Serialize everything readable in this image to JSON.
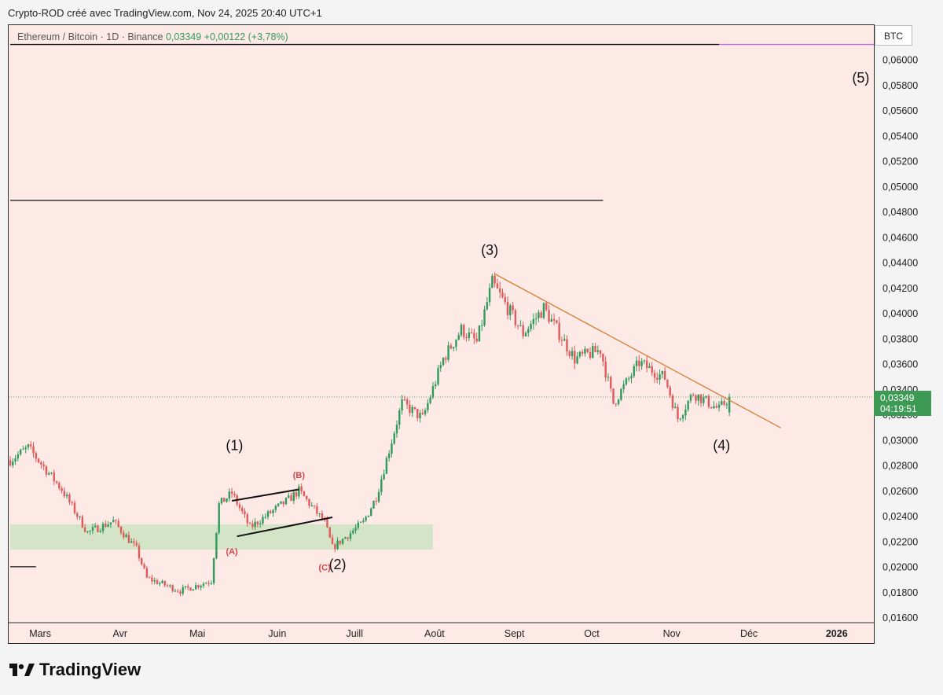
{
  "header": {
    "text": "Crypto-ROD créé avec TradingView.com, Nov 24, 2025 20:40 UTC+1"
  },
  "legend": {
    "symbol": "Ethereum / Bitcoin · 1D · Binance",
    "price": "0,03349",
    "change": "+0,00122 (+3,78%)"
  },
  "currency": "BTC",
  "last_price": {
    "price": "0,03349",
    "countdown": "04:19:51"
  },
  "brand": "TradingView",
  "colors": {
    "up": "#2f9a5b",
    "down": "#e05a5a",
    "background": "#fdeae7",
    "zone": "#cfe3c3",
    "trendline": "#d9803a"
  },
  "chart_data": {
    "type": "candlestick",
    "y_ticks": [
      "0,06000",
      "0,05800",
      "0,05600",
      "0,05400",
      "0,05200",
      "0,05000",
      "0,04800",
      "0,04600",
      "0,04400",
      "0,04200",
      "0,04000",
      "0,03800",
      "0,03600",
      "0,03400",
      "0,03200",
      "0,03000",
      "0,02800",
      "0,02600",
      "0,02400",
      "0,02200",
      "0,02000",
      "0,01800",
      "0,01600"
    ],
    "ylim": [
      0.016,
      0.0618
    ],
    "x_ticks": [
      "Mars",
      "Avr",
      "Mai",
      "Juin",
      "Juill",
      "Août",
      "Sept",
      "Oct",
      "Nov",
      "Déc",
      "2026"
    ],
    "key_points": [
      {
        "date": "2025-02-18",
        "close": 0.0285
      },
      {
        "date": "2025-02-25",
        "close": 0.0295
      },
      {
        "date": "2025-03-10",
        "close": 0.0262
      },
      {
        "date": "2025-03-20",
        "close": 0.0228
      },
      {
        "date": "2025-03-30",
        "close": 0.0237
      },
      {
        "date": "2025-04-08",
        "close": 0.0215
      },
      {
        "date": "2025-04-12",
        "close": 0.0192
      },
      {
        "date": "2025-04-25",
        "close": 0.0182
      },
      {
        "date": "2025-05-07",
        "close": 0.019
      },
      {
        "date": "2025-05-10",
        "close": 0.025
      },
      {
        "date": "2025-05-15",
        "close": 0.0259
      },
      {
        "date": "2025-05-22",
        "close": 0.0232
      },
      {
        "date": "2025-06-06",
        "close": 0.0254
      },
      {
        "date": "2025-06-10",
        "close": 0.0261
      },
      {
        "date": "2025-06-20",
        "close": 0.0236
      },
      {
        "date": "2025-06-23",
        "close": 0.0216
      },
      {
        "date": "2025-07-05",
        "close": 0.0236
      },
      {
        "date": "2025-07-10",
        "close": 0.0256
      },
      {
        "date": "2025-07-20",
        "close": 0.033
      },
      {
        "date": "2025-07-28",
        "close": 0.0318
      },
      {
        "date": "2025-08-05",
        "close": 0.0365
      },
      {
        "date": "2025-08-12",
        "close": 0.0388
      },
      {
        "date": "2025-08-18",
        "close": 0.0378
      },
      {
        "date": "2025-08-24",
        "close": 0.0425
      },
      {
        "date": "2025-09-05",
        "close": 0.0385
      },
      {
        "date": "2025-09-13",
        "close": 0.0405
      },
      {
        "date": "2025-09-25",
        "close": 0.0365
      },
      {
        "date": "2025-10-05",
        "close": 0.0372
      },
      {
        "date": "2025-10-10",
        "close": 0.033
      },
      {
        "date": "2025-10-20",
        "close": 0.0362
      },
      {
        "date": "2025-10-30",
        "close": 0.035
      },
      {
        "date": "2025-11-04",
        "close": 0.0318
      },
      {
        "date": "2025-11-10",
        "close": 0.0338
      },
      {
        "date": "2025-11-20",
        "close": 0.0325
      },
      {
        "date": "2025-11-24",
        "close": 0.03349
      }
    ],
    "annotations": [
      {
        "text": "(1)",
        "date": "2025-05-16",
        "price": 0.0293
      },
      {
        "text": "(2)",
        "date": "2025-06-25",
        "price": 0.0199
      },
      {
        "text": "(3)",
        "date": "2025-08-23",
        "price": 0.0447
      },
      {
        "text": "(4)",
        "date": "2025-11-21",
        "price": 0.0293
      },
      {
        "text": "(5)",
        "date": "2026-01-14",
        "price": 0.0583
      },
      {
        "text": "(A)",
        "date": "2025-05-15",
        "price": 0.0211
      },
      {
        "text": "(B)",
        "date": "2025-06-10",
        "price": 0.0271
      },
      {
        "text": "(C)",
        "date": "2025-06-20",
        "price": 0.0198
      }
    ],
    "support_zone": {
      "price_low": 0.02145,
      "price_high": 0.02345,
      "date_start": "2025-02-18",
      "date_end": "2025-08-01"
    },
    "horizontal_lines": [
      {
        "price": 0.0613,
        "date_start": "2025-02-18",
        "date_end": "2025-11-20",
        "color": "#111111"
      },
      {
        "price": 0.0613,
        "date_start": "2025-11-20",
        "date_end": "2026-01-31",
        "color": "#c86adf"
      },
      {
        "price": 0.049,
        "date_start": "2025-02-18",
        "date_end": "2025-10-06",
        "color": "#111111"
      },
      {
        "price": 0.0201,
        "date_start": "2025-02-18",
        "date_end": "2025-02-28",
        "color": "#111111"
      }
    ],
    "trendlines": [
      {
        "from": {
          "date": "2025-08-25",
          "price": 0.0432
        },
        "to": {
          "date": "2025-12-14",
          "price": 0.03105
        },
        "color": "#d9803a"
      },
      {
        "from": {
          "date": "2025-05-15",
          "price": 0.0253
        },
        "to": {
          "date": "2025-06-10",
          "price": 0.0262
        },
        "color": "#111111"
      },
      {
        "from": {
          "date": "2025-05-17",
          "price": 0.0225
        },
        "to": {
          "date": "2025-06-23",
          "price": 0.024
        },
        "color": "#111111"
      }
    ],
    "last_price": 0.03349
  }
}
